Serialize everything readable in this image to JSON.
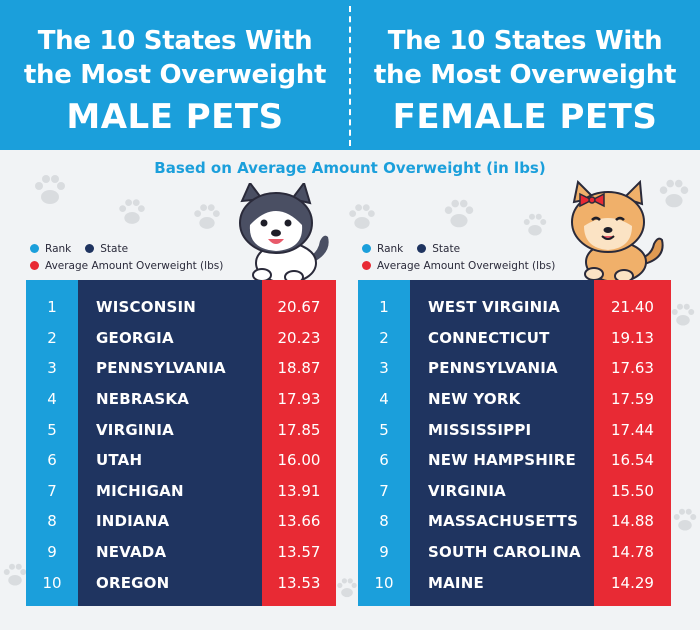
{
  "header": {
    "left": {
      "line1": "The 10 States With",
      "line2": "the Most Overweight",
      "big": "MALE PETS"
    },
    "right": {
      "line1": "The 10 States With",
      "line2": "the Most Overweight",
      "big": "FEMALE PETS"
    }
  },
  "subtitle": "Based on Average Amount Overweight (in lbs)",
  "legend": {
    "rank": "Rank",
    "state": "State",
    "value": "Average Amount Overweight (lbs)"
  },
  "colors": {
    "rank": "#1b9fdb",
    "state": "#1f3460",
    "value": "#e82a34",
    "header": "#1b9fdb"
  },
  "icons": [
    "paw-print-icon",
    "husky-dog-icon",
    "shiba-dog-with-bow-icon"
  ],
  "chart_data": [
    {
      "type": "table",
      "title": "The 10 States With the Most Overweight MALE PETS",
      "columns": [
        "Rank",
        "State",
        "Average Amount Overweight (lbs)"
      ],
      "rows": [
        {
          "rank": "1",
          "state": "WISCONSIN",
          "value": "20.67"
        },
        {
          "rank": "2",
          "state": "GEORGIA",
          "value": "20.23"
        },
        {
          "rank": "3",
          "state": "PENNSYLVANIA",
          "value": "18.87"
        },
        {
          "rank": "4",
          "state": "NEBRASKA",
          "value": "17.93"
        },
        {
          "rank": "5",
          "state": "VIRGINIA",
          "value": "17.85"
        },
        {
          "rank": "6",
          "state": "UTAH",
          "value": "16.00"
        },
        {
          "rank": "7",
          "state": "MICHIGAN",
          "value": "13.91"
        },
        {
          "rank": "8",
          "state": "INDIANA",
          "value": "13.66"
        },
        {
          "rank": "9",
          "state": "NEVADA",
          "value": "13.57"
        },
        {
          "rank": "10",
          "state": "OREGON",
          "value": "13.53"
        }
      ]
    },
    {
      "type": "table",
      "title": "The 10 States With the Most Overweight FEMALE PETS",
      "columns": [
        "Rank",
        "State",
        "Average Amount Overweight (lbs)"
      ],
      "rows": [
        {
          "rank": "1",
          "state": "WEST VIRGINIA",
          "value": "21.40"
        },
        {
          "rank": "2",
          "state": "CONNECTICUT",
          "value": "19.13"
        },
        {
          "rank": "3",
          "state": "PENNSYLVANIA",
          "value": "17.63"
        },
        {
          "rank": "4",
          "state": "NEW YORK",
          "value": "17.59"
        },
        {
          "rank": "5",
          "state": "MISSISSIPPI",
          "value": "17.44"
        },
        {
          "rank": "6",
          "state": "NEW HAMPSHIRE",
          "value": "16.54"
        },
        {
          "rank": "7",
          "state": "VIRGINIA",
          "value": "15.50"
        },
        {
          "rank": "8",
          "state": "MASSACHUSETTS",
          "value": "14.88"
        },
        {
          "rank": "9",
          "state": "SOUTH CAROLINA",
          "value": "14.78"
        },
        {
          "rank": "10",
          "state": "MAINE",
          "value": "14.29"
        }
      ]
    }
  ]
}
